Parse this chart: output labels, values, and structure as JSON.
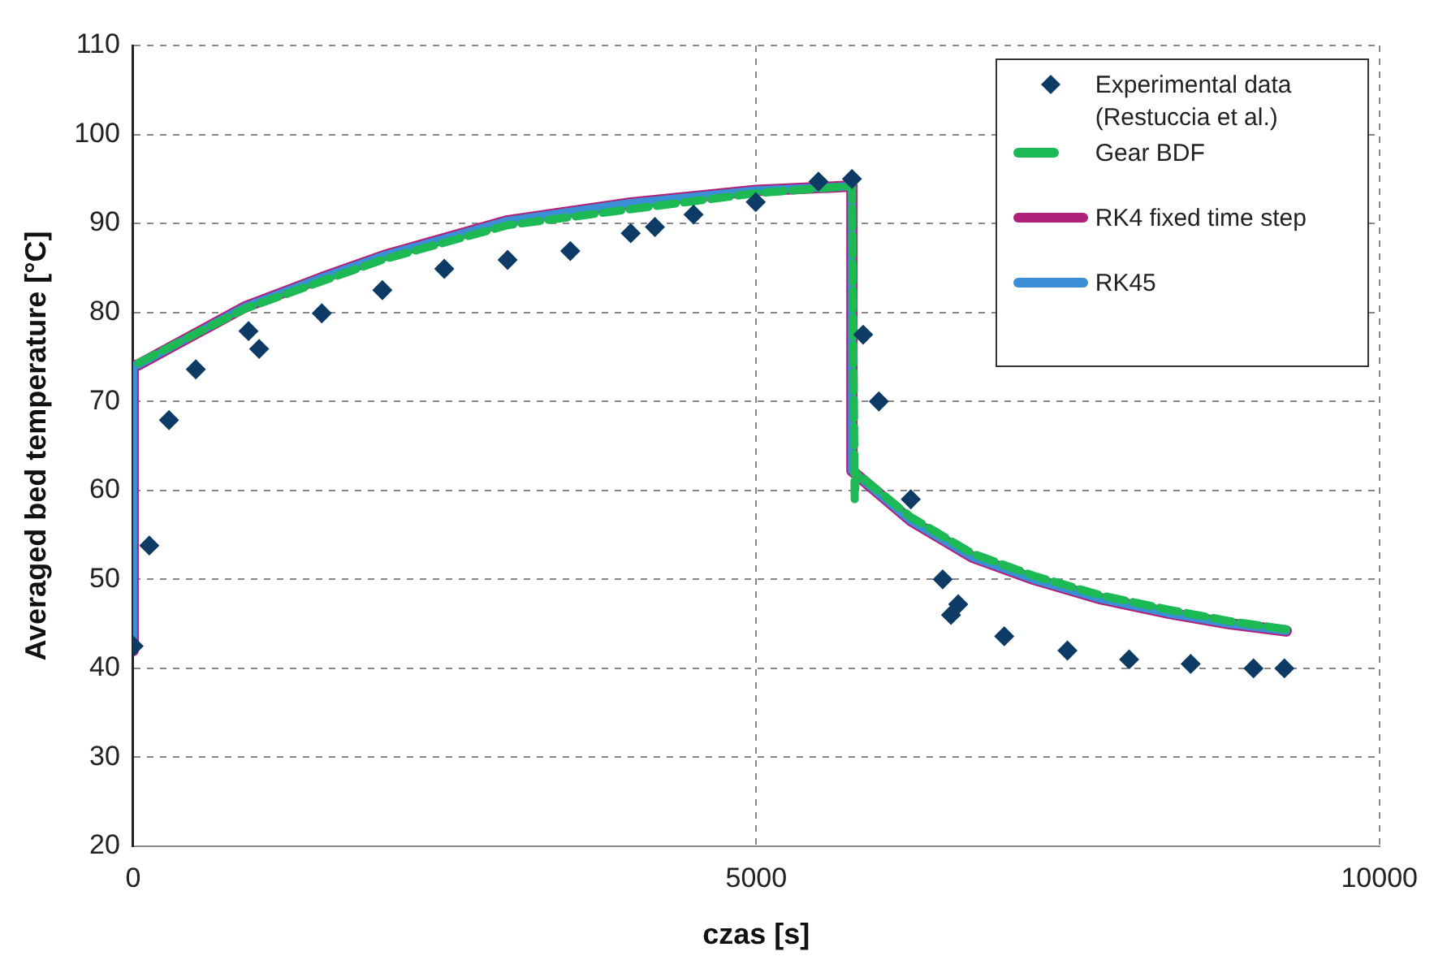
{
  "chart_data": {
    "type": "line",
    "xlabel": "czas [s]",
    "ylabel": "Averaged bed temperature [°C]",
    "xlim": [
      0,
      10000
    ],
    "xticks": [
      0,
      5000,
      10000
    ],
    "ylim": [
      20,
      110
    ],
    "yticks": [
      20,
      30,
      40,
      50,
      60,
      70,
      80,
      90,
      100,
      110
    ],
    "grid": true,
    "legend": "top right",
    "series": [
      {
        "name": "Experimental data (Restuccia et al.)",
        "type": "scatter",
        "marker": "diamond",
        "color": "#0d3b66",
        "x": [
          4,
          130,
          288,
          503,
          926,
          1011,
          1514,
          2000,
          2497,
          3005,
          3508,
          3993,
          4187,
          4497,
          4996,
          5499,
          5768,
          5858,
          5984,
          6240,
          6496,
          6563,
          6621,
          6990,
          7497,
          7992,
          8486,
          8990,
          9238
        ],
        "values": [
          42.5,
          53.8,
          67.9,
          73.6,
          77.9,
          75.9,
          79.9,
          82.5,
          84.9,
          85.9,
          86.9,
          88.9,
          89.6,
          91,
          92.4,
          94.7,
          95,
          77.5,
          70,
          59,
          50,
          46,
          47.2,
          43.6,
          42,
          41,
          40.5,
          40,
          40
        ]
      },
      {
        "name": "Gear BDF",
        "type": "line",
        "line_style": "dashed",
        "color": "#1db954",
        "x": [
          40,
          894,
          1514,
          2017,
          3005,
          3993,
          4996,
          5768,
          5790,
          5800,
          6240,
          6734,
          7228,
          7767,
          8306,
          8800,
          9252
        ],
        "values": [
          74.3,
          80.4,
          83.5,
          86,
          89.8,
          91.6,
          93.4,
          94.2,
          59,
          62,
          57,
          52.9,
          50.4,
          48.2,
          46.6,
          45.3,
          44.4
        ]
      },
      {
        "name": "RK4 fixed time step",
        "type": "line",
        "line_style": "solid",
        "color": "#b0227a",
        "x": [
          0,
          0,
          40,
          894,
          1514,
          2017,
          3005,
          3993,
          4996,
          5768,
          5768,
          6240,
          6734,
          7228,
          7767,
          8306,
          8800,
          9252
        ],
        "values": [
          42,
          74,
          74.1,
          80.6,
          83.9,
          86.4,
          90.3,
          92.3,
          93.7,
          94.2,
          62.2,
          56.6,
          52.5,
          50,
          47.8,
          46.2,
          45,
          44.2
        ]
      },
      {
        "name": "RK45",
        "type": "line",
        "line_style": "solid",
        "color": "#3a8fd6",
        "x": [
          0,
          0,
          40,
          894,
          1514,
          2017,
          3005,
          3993,
          4996,
          5768,
          5768,
          6240,
          6734,
          7228,
          7767,
          8306,
          8800,
          9252
        ],
        "values": [
          42,
          74,
          74.1,
          80.6,
          83.9,
          86.4,
          90.3,
          92.3,
          93.7,
          94.2,
          62.2,
          56.6,
          52.5,
          50,
          47.8,
          46.2,
          45,
          44.2
        ]
      }
    ]
  }
}
